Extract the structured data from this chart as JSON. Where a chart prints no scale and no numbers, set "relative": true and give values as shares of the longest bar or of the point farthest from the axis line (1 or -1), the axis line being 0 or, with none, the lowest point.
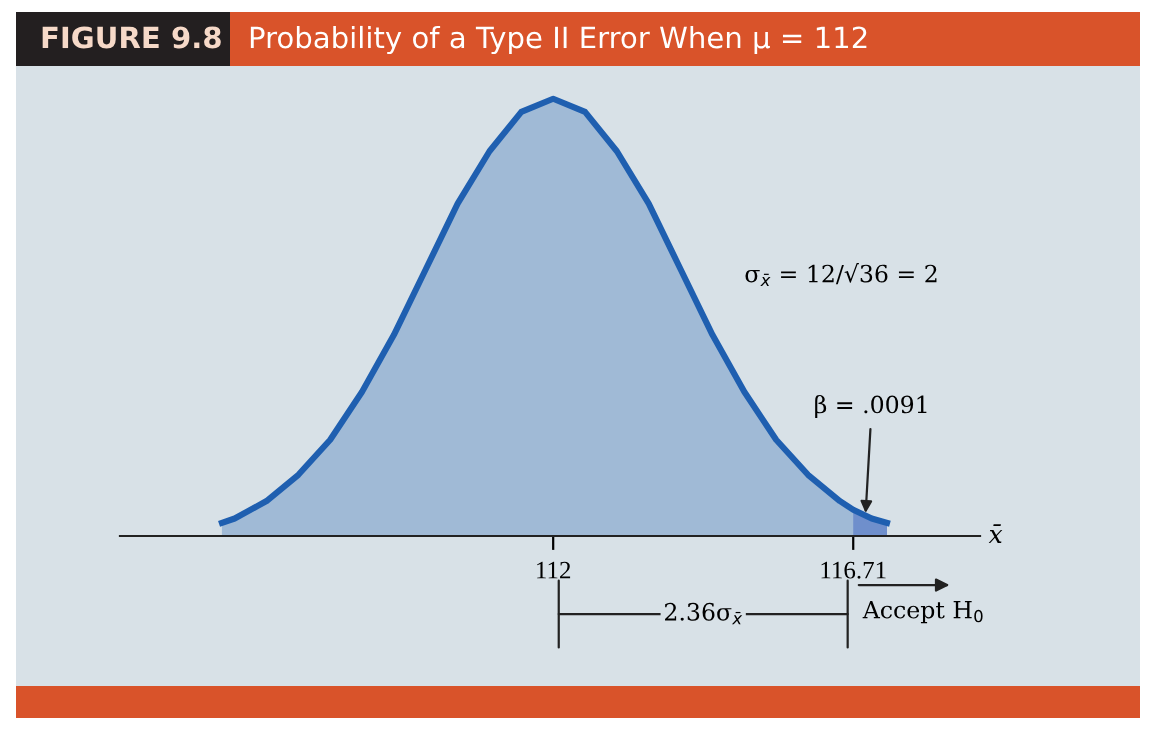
{
  "chart_data": {
    "type": "area",
    "title": "FIGURE 9.8",
    "subtitle": "Probability of a Type II Error When μ = 112",
    "xlabel": "x̄",
    "relative": true,
    "xlim": [
      105.2,
      118.7
    ],
    "xticks": [
      112,
      116.71
    ],
    "series": [
      {
        "color": "#1f5fb0",
        "x": [
          106.8,
          107,
          107.5,
          108,
          108.5,
          109,
          109.5,
          110,
          110.5,
          111,
          111.5,
          112,
          112.5,
          113,
          113.5,
          114,
          114.5,
          115,
          115.5,
          116,
          116.5,
          116.71,
          117,
          117.24
        ],
        "values": [
          0.03,
          0.04,
          0.08,
          0.14,
          0.22,
          0.33,
          0.46,
          0.61,
          0.76,
          0.88,
          0.97,
          1,
          0.97,
          0.88,
          0.76,
          0.61,
          0.46,
          0.33,
          0.22,
          0.14,
          0.08,
          0.06,
          0.04,
          0.03
        ]
      },
      {
        "color": "#5f80c8",
        "x": [
          116.71,
          117,
          117.24
        ],
        "values": [
          0.06,
          0.04,
          0.03
        ]
      }
    ],
    "annotations": [
      "σ$_{x̄}$ = 12/√36 = 2",
      {
        "text": "β = .0091",
        "x": 116.9,
        "y": 0.04
      },
      "2.36σ$_{x̄}$",
      "Accept H$_{0}$"
    ]
  }
}
